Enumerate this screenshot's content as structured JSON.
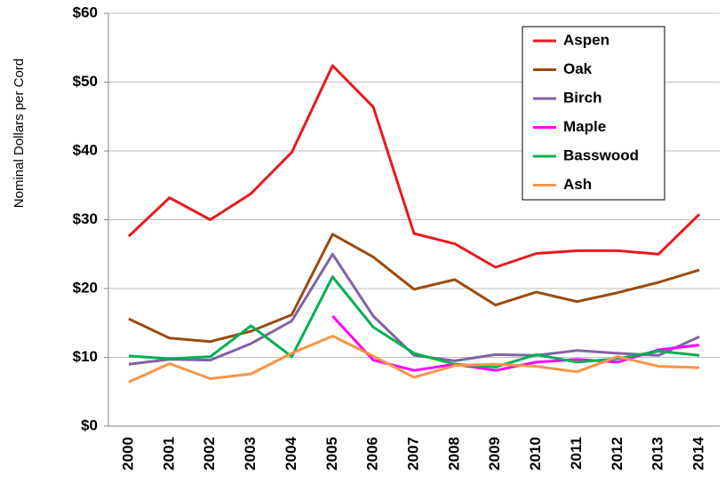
{
  "chart_data": {
    "type": "line",
    "y_label": "Nominal Dollars per Cord",
    "categories": [
      "2000",
      "2001",
      "2002",
      "2003",
      "2004",
      "2005",
      "2006",
      "2007",
      "2008",
      "2009",
      "2010",
      "2011",
      "2012",
      "2013",
      "2014"
    ],
    "series": [
      {
        "name": "Aspen",
        "color": "#e8191f",
        "values": [
          27.6,
          33.2,
          30.0,
          33.8,
          39.8,
          52.4,
          46.4,
          28.0,
          26.5,
          23.1,
          25.1,
          25.5,
          25.5,
          25.0,
          30.8
        ]
      },
      {
        "name": "Oak",
        "color": "#9b4a0f",
        "values": [
          15.6,
          12.8,
          12.3,
          13.8,
          16.2,
          27.9,
          24.6,
          19.9,
          21.3,
          17.6,
          19.5,
          18.1,
          19.4,
          20.9,
          22.7
        ]
      },
      {
        "name": "Birch",
        "color": "#8064a2",
        "values": [
          9.0,
          9.7,
          9.6,
          12.0,
          15.3,
          25.0,
          16.0,
          10.3,
          9.5,
          10.4,
          10.3,
          11.0,
          10.6,
          10.3,
          13.0
        ]
      },
      {
        "name": "Maple",
        "color": "#ff00ff",
        "values": [
          null,
          null,
          null,
          null,
          null,
          16.0,
          9.6,
          8.1,
          9.0,
          8.1,
          9.3,
          9.7,
          9.3,
          11.1,
          11.8
        ]
      },
      {
        "name": "Basswood",
        "color": "#00b050",
        "values": [
          10.2,
          9.8,
          10.1,
          14.6,
          10.1,
          21.7,
          14.4,
          10.6,
          9.0,
          8.6,
          10.4,
          9.3,
          9.8,
          10.9,
          10.3
        ]
      },
      {
        "name": "Ash",
        "color": "#f79646",
        "values": [
          6.4,
          9.1,
          6.9,
          7.6,
          10.6,
          13.1,
          10.2,
          7.1,
          8.8,
          9.0,
          8.7,
          7.9,
          10.1,
          8.7,
          8.5
        ]
      }
    ],
    "ylim": [
      0,
      60
    ],
    "yticks": [
      {
        "value": 0,
        "label": "$0"
      },
      {
        "value": 10,
        "label": "$10"
      },
      {
        "value": 20,
        "label": "$20"
      },
      {
        "value": 30,
        "label": "$30"
      },
      {
        "value": 40,
        "label": "$40"
      },
      {
        "value": 50,
        "label": "$50"
      },
      {
        "value": 60,
        "label": "$60"
      }
    ],
    "grid": true,
    "legend": "top-right"
  }
}
